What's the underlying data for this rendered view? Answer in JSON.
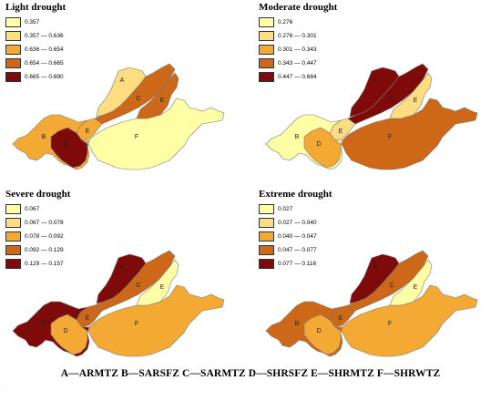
{
  "maps": [
    {
      "title": "Light drought",
      "legend": [
        {
          "label": "0.357",
          "color": "#ffffa6"
        },
        {
          "label": "0.357 — 0.636",
          "color": "#fddd82"
        },
        {
          "label": "0.636 — 0.654",
          "color": "#f5a935"
        },
        {
          "label": "0.654 — 0.665",
          "color": "#cc6818"
        },
        {
          "label": "0.665 — 0.690",
          "color": "#7e0a0a"
        }
      ],
      "zones": {
        "A": 1,
        "B": 2,
        "C": 3,
        "D": 4,
        "E": 3,
        "F": 0,
        "G": 2
      }
    },
    {
      "title": "Moderate drought",
      "legend": [
        {
          "label": "0.276",
          "color": "#ffffa6"
        },
        {
          "label": "0.276 — 0.301",
          "color": "#fddd82"
        },
        {
          "label": "0.301 — 0.343",
          "color": "#f5a935"
        },
        {
          "label": "0.343 — 0.447",
          "color": "#cc6818"
        },
        {
          "label": "0.447 — 0.684",
          "color": "#7e0a0a"
        }
      ],
      "zones": {
        "A": 4,
        "B": 0,
        "C": 4,
        "D": 2,
        "E": 1,
        "F": 3,
        "G": 1
      }
    },
    {
      "title": "Severe drought",
      "legend": [
        {
          "label": "0.067",
          "color": "#ffffa6"
        },
        {
          "label": "0.067 — 0.078",
          "color": "#fddd82"
        },
        {
          "label": "0.078 — 0.092",
          "color": "#f5a935"
        },
        {
          "label": "0.092 — 0.129",
          "color": "#cc6818"
        },
        {
          "label": "0.129 — 0.157",
          "color": "#7e0a0a"
        }
      ],
      "zones": {
        "A": 4,
        "B": 4,
        "C": 3,
        "D": 2,
        "E": 0,
        "F": 2,
        "G": 3
      }
    },
    {
      "title": "Extreme drought",
      "legend": [
        {
          "label": "0.027",
          "color": "#ffffa6"
        },
        {
          "label": "0.027 — 0.040",
          "color": "#fddd82"
        },
        {
          "label": "0.040 — 0.047",
          "color": "#f5a935"
        },
        {
          "label": "0.047 — 0.077",
          "color": "#cc6818"
        },
        {
          "label": "0.077 — 0.116",
          "color": "#7e0a0a"
        }
      ],
      "zones": {
        "A": 4,
        "B": 3,
        "C": 3,
        "D": 2,
        "E": 0,
        "F": 2,
        "G": 3
      }
    }
  ],
  "caption": "A—ARMTZ  B—SARSFZ  C—SARMTZ  D—SHRSFZ  E—SHRMTZ  F—SHRWTZ",
  "corner_mark": "ʿ"
}
